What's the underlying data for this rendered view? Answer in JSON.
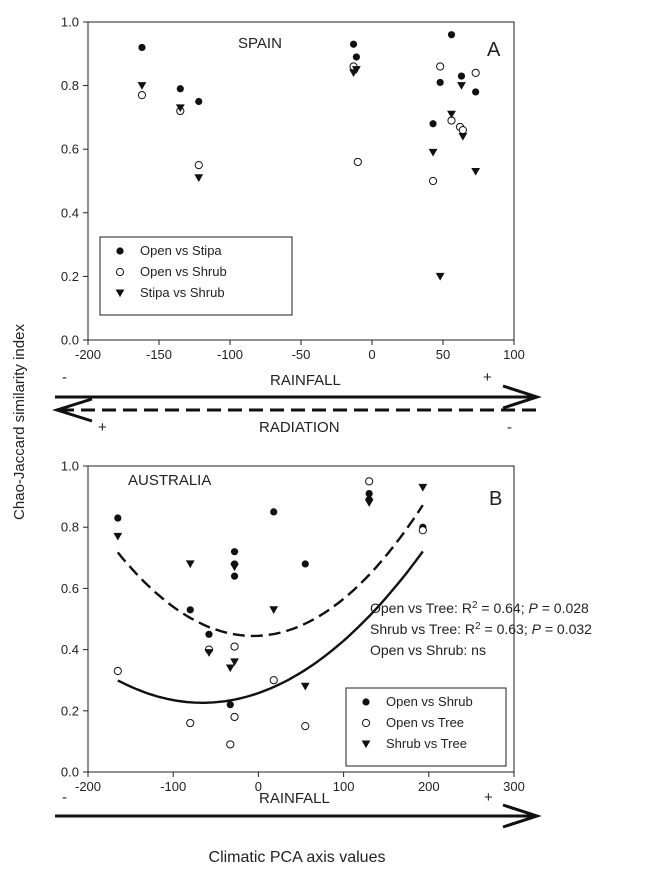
{
  "figure": {
    "ylabel": "Chao-Jaccard similarity index",
    "xlabel": "Climatic PCA axis values",
    "arrows": [
      {
        "label": "RAINFALL",
        "minus": "-",
        "plus": "+"
      },
      {
        "label": "RADIATION",
        "minus": "-",
        "plus": "+"
      },
      {
        "label": "RAINFALL",
        "minus": "-",
        "plus": "+"
      }
    ]
  },
  "chart_data": [
    {
      "type": "scatter",
      "panel_label": "A",
      "region_label": "SPAIN",
      "xlim": [
        -200,
        100
      ],
      "ylim": [
        0.0,
        1.0
      ],
      "xticks": [
        -200,
        -150,
        -100,
        -50,
        0,
        50,
        100
      ],
      "yticks": [
        "0.0",
        "0.2",
        "0.4",
        "0.6",
        "0.8",
        "1.0"
      ],
      "legend_position": "bottom-left",
      "series": [
        {
          "name": "Open vs Stipa",
          "marker": "filled-circle",
          "x": [
            -162,
            -135,
            -122,
            -13,
            -11,
            43,
            48,
            56,
            63,
            73
          ],
          "y": [
            0.92,
            0.79,
            0.75,
            0.93,
            0.89,
            0.68,
            0.81,
            0.96,
            0.83,
            0.78
          ]
        },
        {
          "name": "Open vs Shrub",
          "marker": "open-circle",
          "x": [
            -162,
            -135,
            -122,
            -13,
            -10,
            43,
            48,
            56,
            62,
            64,
            73
          ],
          "y": [
            0.77,
            0.72,
            0.55,
            0.86,
            0.56,
            0.5,
            0.86,
            0.69,
            0.67,
            0.66,
            0.84
          ]
        },
        {
          "name": "Stipa vs Shrub",
          "marker": "filled-triangle-down",
          "x": [
            -162,
            -135,
            -122,
            -13,
            -11,
            43,
            48,
            56,
            63,
            64,
            73
          ],
          "y": [
            0.8,
            0.73,
            0.51,
            0.84,
            0.85,
            0.59,
            0.2,
            0.71,
            0.8,
            0.64,
            0.53
          ]
        }
      ]
    },
    {
      "type": "scatter",
      "panel_label": "B",
      "region_label": "AUSTRALIA",
      "xlim": [
        -200,
        300
      ],
      "ylim": [
        0.0,
        1.0
      ],
      "xticks": [
        -200,
        -100,
        0,
        100,
        200,
        300
      ],
      "yticks": [
        "0.0",
        "0.2",
        "0.4",
        "0.6",
        "0.8",
        "1.0"
      ],
      "legend_position": "bottom-right",
      "annotations": [
        {
          "prefix": "Open vs Tree: R",
          "sup": "2",
          "middle": " = 0.64; ",
          "italic": "P",
          "suffix": " = 0.028"
        },
        {
          "prefix": "Shrub vs Tree: R",
          "sup": "2",
          "middle": " = 0.63; ",
          "italic": "P",
          "suffix": " = 0.032"
        },
        {
          "prefix": "Open vs Shrub: ns",
          "sup": "",
          "middle": "",
          "italic": "",
          "suffix": ""
        }
      ],
      "series": [
        {
          "name": "Open vs Shrub",
          "marker": "filled-circle",
          "x": [
            -165,
            -80,
            -58,
            -33,
            -28,
            -28,
            -28,
            18,
            55,
            130,
            130,
            193
          ],
          "y": [
            0.83,
            0.53,
            0.45,
            0.22,
            0.72,
            0.68,
            0.64,
            0.85,
            0.68,
            0.91,
            0.89,
            0.8
          ]
        },
        {
          "name": "Open vs Tree",
          "marker": "open-circle",
          "x": [
            -165,
            -80,
            -58,
            -33,
            -28,
            -28,
            18,
            55,
            130,
            193
          ],
          "y": [
            0.33,
            0.16,
            0.4,
            0.09,
            0.41,
            0.18,
            0.3,
            0.15,
            0.95,
            0.79
          ]
        },
        {
          "name": "Shrub vs Tree",
          "marker": "filled-triangle-down",
          "x": [
            -165,
            -80,
            -58,
            -33,
            -28,
            -28,
            18,
            55,
            130,
            193
          ],
          "y": [
            0.77,
            0.68,
            0.39,
            0.34,
            0.36,
            0.67,
            0.53,
            0.28,
            0.88,
            0.93
          ]
        }
      ],
      "fits": [
        {
          "series": "Open vs Tree",
          "style": "solid",
          "coef": [
            0.258,
            0.00097,
            7.4e-06
          ],
          "range": [
            -165,
            193
          ]
        },
        {
          "series": "Shrub vs Tree",
          "style": "dashed",
          "coef": [
            0.445,
            0.00013,
            1.08e-05
          ],
          "range": [
            -165,
            193
          ]
        }
      ]
    }
  ]
}
